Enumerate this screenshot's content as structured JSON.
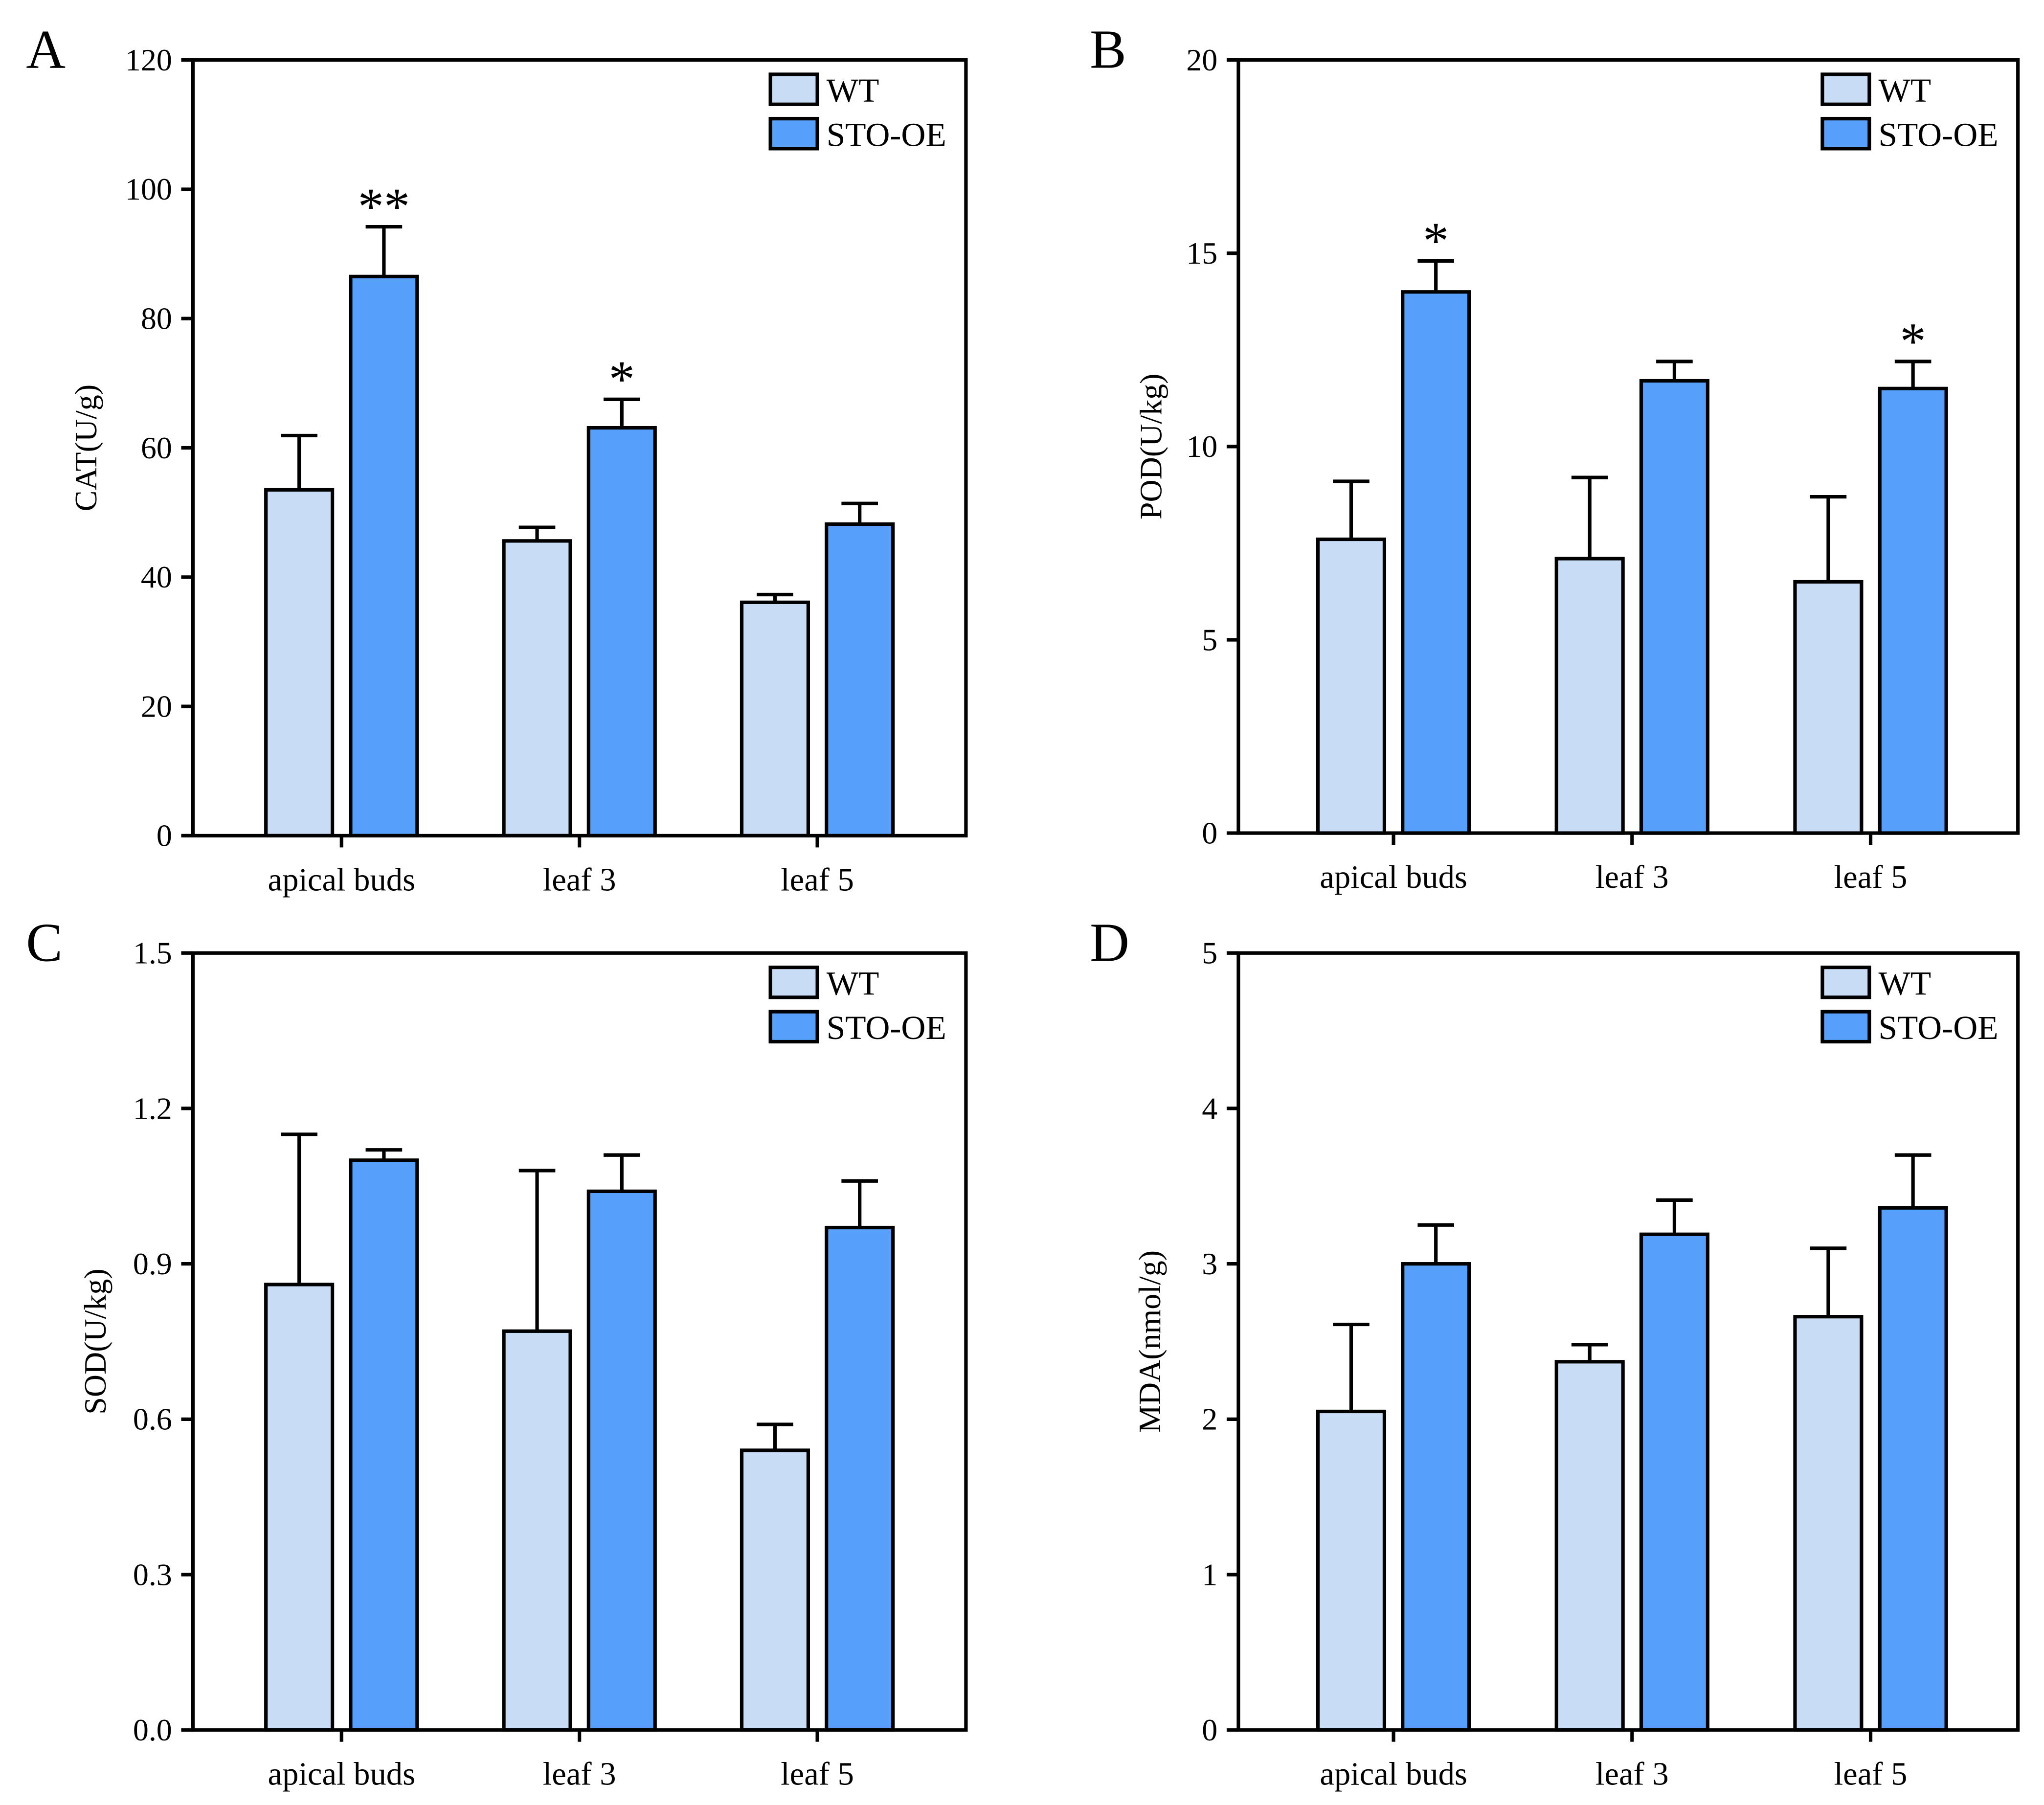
{
  "figure": {
    "background_color": "#ffffff",
    "bar_outline_color": "#000000"
  },
  "chart_data": [
    {
      "panel": "A",
      "type": "bar",
      "ylabel": "CAT(U/g)",
      "ylim": [
        0,
        120
      ],
      "y_ticks": [
        "0",
        "20",
        "40",
        "60",
        "80",
        "100",
        "120"
      ],
      "categories": [
        "apical buds",
        "leaf 3",
        "leaf 5"
      ],
      "legend": "top-right",
      "grid": false,
      "series": [
        {
          "name": "WT",
          "color": "#c8dcf6",
          "values": [
            53.5,
            45.6,
            36.1
          ],
          "errors": [
            8.4,
            2.1,
            1.2
          ],
          "significance": [
            null,
            null,
            null
          ]
        },
        {
          "name": "STO-OE",
          "color": "#56a0fb",
          "values": [
            86.5,
            63.1,
            48.2
          ],
          "errors": [
            7.7,
            4.4,
            3.2
          ],
          "significance": [
            "**",
            "*",
            null
          ]
        }
      ]
    },
    {
      "panel": "B",
      "type": "bar",
      "ylabel": "POD(U/kg)",
      "ylim": [
        0,
        20
      ],
      "y_ticks": [
        "0",
        "5",
        "10",
        "15",
        "20"
      ],
      "categories": [
        "apical buds",
        "leaf 3",
        "leaf 5"
      ],
      "legend": "top-right",
      "grid": false,
      "series": [
        {
          "name": "WT",
          "color": "#c8dcf6",
          "values": [
            7.6,
            7.1,
            6.5
          ],
          "errors": [
            1.5,
            2.1,
            2.2
          ],
          "significance": [
            null,
            null,
            null
          ]
        },
        {
          "name": "STO-OE",
          "color": "#56a0fb",
          "values": [
            14.0,
            11.7,
            11.5
          ],
          "errors": [
            0.8,
            0.5,
            0.7
          ],
          "significance": [
            "*",
            null,
            "*"
          ]
        }
      ]
    },
    {
      "panel": "C",
      "type": "bar",
      "ylabel": "SOD(U/kg)",
      "ylim": [
        0,
        1.5
      ],
      "y_ticks": [
        "0.0",
        "0.3",
        "0.6",
        "0.9",
        "1.2",
        "1.5"
      ],
      "categories": [
        "apical buds",
        "leaf 3",
        "leaf 5"
      ],
      "legend": "top-right",
      "grid": false,
      "series": [
        {
          "name": "WT",
          "color": "#c8dcf6",
          "values": [
            0.86,
            0.77,
            0.54
          ],
          "errors": [
            0.29,
            0.31,
            0.05
          ],
          "significance": [
            null,
            null,
            null
          ]
        },
        {
          "name": "STO-OE",
          "color": "#56a0fb",
          "values": [
            1.1,
            1.04,
            0.97
          ],
          "errors": [
            0.02,
            0.07,
            0.09
          ],
          "significance": [
            null,
            null,
            null
          ]
        }
      ]
    },
    {
      "panel": "D",
      "type": "bar",
      "ylabel": "MDA(nmol/g)",
      "ylim": [
        0,
        5
      ],
      "y_ticks": [
        "0",
        "1",
        "2",
        "3",
        "4",
        "5"
      ],
      "categories": [
        "apical buds",
        "leaf 3",
        "leaf 5"
      ],
      "legend": "top-right",
      "grid": false,
      "series": [
        {
          "name": "WT",
          "color": "#c8dcf6",
          "values": [
            2.05,
            2.37,
            2.66
          ],
          "errors": [
            0.56,
            0.11,
            0.44
          ],
          "significance": [
            null,
            null,
            null
          ]
        },
        {
          "name": "STO-OE",
          "color": "#56a0fb",
          "values": [
            3.0,
            3.19,
            3.36
          ],
          "errors": [
            0.25,
            0.22,
            0.34
          ],
          "significance": [
            null,
            null,
            null
          ]
        }
      ]
    }
  ]
}
